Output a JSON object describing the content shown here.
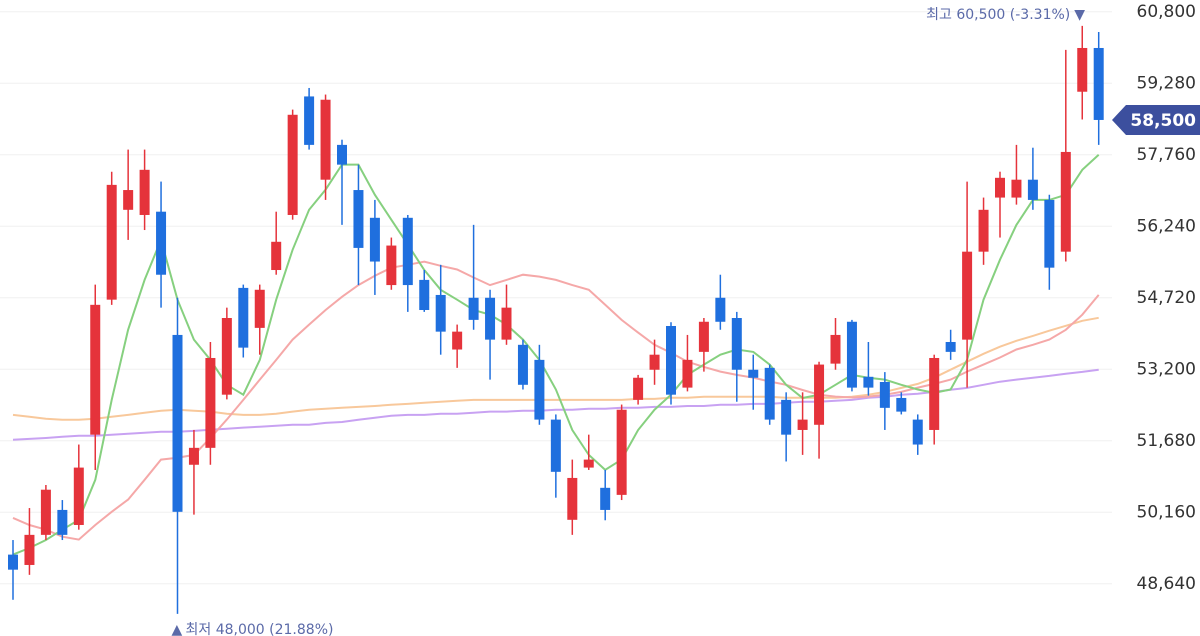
{
  "chart_data": {
    "type": "candlestick",
    "ylim": [
      47530,
      61050
    ],
    "yticks": [
      {
        "value": 48640,
        "label": "48,640"
      },
      {
        "value": 50160,
        "label": "50,160"
      },
      {
        "value": 51680,
        "label": "51,680"
      },
      {
        "value": 53200,
        "label": "53,200"
      },
      {
        "value": 54720,
        "label": "54,720"
      },
      {
        "value": 56240,
        "label": "56,240"
      },
      {
        "value": 57760,
        "label": "57,760"
      },
      {
        "value": 59280,
        "label": "59,280"
      },
      {
        "value": 60800,
        "label": "60,800"
      }
    ],
    "grid": true,
    "up_color": "#e5333b",
    "down_color": "#1f6fde",
    "candles": {
      "open": [
        49260,
        49040,
        49680,
        50210,
        49890,
        51810,
        54680,
        56590,
        56480,
        56550,
        53930,
        51170,
        51530,
        52660,
        54930,
        54080,
        55310,
        56480,
        59000,
        57230,
        57970,
        57010,
        56420,
        54990,
        56420,
        55100,
        54780,
        53620,
        54720,
        54720,
        53830,
        53720,
        53400,
        52130,
        50000,
        51110,
        50680,
        50530,
        52550,
        53190,
        54120,
        52810,
        53570,
        54720,
        54290,
        53190,
        53230,
        52550,
        51910,
        52020,
        53320,
        54210,
        53040,
        52930,
        52590,
        52130,
        51910,
        53780,
        53830,
        55700,
        56850,
        56850,
        57230,
        56800,
        55700,
        59100,
        60030
      ],
      "high": [
        49570,
        50250,
        50740,
        50420,
        51600,
        55000,
        57400,
        57870,
        57870,
        57190,
        54720,
        51910,
        53780,
        54510,
        55000,
        55000,
        56550,
        58720,
        59180,
        59040,
        58080,
        57550,
        56800,
        56000,
        56480,
        55310,
        55420,
        54150,
        56270,
        54890,
        55000,
        53830,
        53720,
        52240,
        51280,
        51810,
        51060,
        52450,
        53080,
        53830,
        54200,
        53930,
        54290,
        55210,
        54420,
        53510,
        53300,
        52710,
        52710,
        53360,
        54290,
        54250,
        53780,
        53140,
        52710,
        52240,
        53510,
        54040,
        57190,
        56850,
        57400,
        57970,
        57910,
        56910,
        59990,
        60500,
        60370
      ],
      "low": [
        48300,
        48830,
        49570,
        49570,
        49790,
        51060,
        54570,
        55950,
        56160,
        54510,
        48000,
        50110,
        51170,
        52560,
        53450,
        53510,
        55210,
        56380,
        57870,
        56800,
        56270,
        54990,
        54780,
        54890,
        54420,
        54420,
        53510,
        53230,
        54040,
        52980,
        53720,
        52770,
        52020,
        50470,
        49680,
        51060,
        49990,
        50420,
        52450,
        52870,
        52450,
        52730,
        53150,
        54040,
        52510,
        52340,
        52020,
        51240,
        51380,
        51300,
        53190,
        52730,
        52640,
        51910,
        52240,
        51380,
        51600,
        53400,
        52810,
        55420,
        56000,
        56700,
        56590,
        54890,
        55490,
        58510,
        57970
      ],
      "close": [
        48940,
        49680,
        50640,
        49680,
        51110,
        54570,
        57120,
        57010,
        57440,
        55210,
        50170,
        51530,
        53440,
        54290,
        53660,
        54890,
        55910,
        58610,
        57970,
        58930,
        57550,
        55780,
        55490,
        55830,
        54990,
        54460,
        54000,
        54000,
        54250,
        53830,
        54510,
        52870,
        52130,
        51020,
        50890,
        51280,
        50210,
        52340,
        53020,
        53510,
        52660,
        53400,
        54210,
        54210,
        53190,
        53020,
        52130,
        51810,
        52130,
        53300,
        53930,
        52810,
        52810,
        52380,
        52300,
        51600,
        53440,
        53570,
        55700,
        56590,
        57270,
        57230,
        56800,
        55360,
        57820,
        60030,
        58500
      ]
    },
    "lines": [
      {
        "color": "#c8a2f2",
        "values": [
          51700,
          51720,
          51740,
          51765,
          51785,
          51785,
          51810,
          51830,
          51850,
          51870,
          51870,
          51890,
          51915,
          51935,
          51960,
          51980,
          52000,
          52020,
          52020,
          52060,
          52080,
          52125,
          52170,
          52210,
          52230,
          52230,
          52255,
          52255,
          52275,
          52300,
          52300,
          52320,
          52320,
          52340,
          52340,
          52360,
          52360,
          52380,
          52380,
          52400,
          52400,
          52420,
          52420,
          52445,
          52445,
          52465,
          52465,
          52490,
          52510,
          52510,
          52530,
          52550,
          52595,
          52615,
          52660,
          52680,
          52720,
          52765,
          52805,
          52870,
          52935,
          52980,
          53020,
          53060,
          53105,
          53145,
          53190
        ]
      },
      {
        "color": "#f8c89b",
        "values": [
          52230,
          52190,
          52150,
          52125,
          52125,
          52150,
          52190,
          52230,
          52275,
          52320,
          52340,
          52320,
          52300,
          52255,
          52230,
          52230,
          52255,
          52300,
          52340,
          52360,
          52380,
          52400,
          52420,
          52445,
          52465,
          52490,
          52510,
          52530,
          52550,
          52550,
          52550,
          52550,
          52550,
          52550,
          52550,
          52550,
          52550,
          52550,
          52570,
          52570,
          52595,
          52595,
          52615,
          52615,
          52615,
          52615,
          52615,
          52595,
          52595,
          52595,
          52595,
          52615,
          52660,
          52720,
          52805,
          52890,
          53020,
          53190,
          53360,
          53530,
          53680,
          53805,
          53910,
          54020,
          54125,
          54230,
          54295
        ]
      },
      {
        "color": "#f5a8a8",
        "values": [
          50040,
          49890,
          49790,
          49640,
          49580,
          49890,
          50170,
          50430,
          50850,
          51280,
          51320,
          51380,
          51740,
          52130,
          52550,
          52980,
          53400,
          53830,
          54150,
          54460,
          54740,
          54990,
          55190,
          55360,
          55420,
          55490,
          55400,
          55320,
          55150,
          54990,
          55100,
          55210,
          55170,
          55100,
          54990,
          54890,
          54570,
          54250,
          53980,
          53720,
          53550,
          53360,
          53250,
          53150,
          53080,
          53020,
          52940,
          52870,
          52760,
          52660,
          52620,
          52600,
          52620,
          52660,
          52720,
          52810,
          52890,
          52980,
          53150,
          53300,
          53450,
          53620,
          53720,
          53830,
          54040,
          54360,
          54780
        ]
      },
      {
        "color": "#86d07f",
        "values": [
          49260,
          49400,
          49570,
          49790,
          50000,
          50850,
          52550,
          54040,
          55100,
          55950,
          54680,
          53830,
          53400,
          52870,
          52660,
          53400,
          54680,
          55740,
          56590,
          57020,
          57550,
          57550,
          56910,
          56380,
          55850,
          55310,
          54890,
          54680,
          54460,
          54360,
          54150,
          53830,
          53400,
          52770,
          51910,
          51380,
          51060,
          51280,
          51910,
          52340,
          52660,
          53080,
          53300,
          53510,
          53620,
          53570,
          53300,
          52870,
          52590,
          52660,
          52870,
          53080,
          53020,
          52980,
          52870,
          52770,
          52700,
          52770,
          53400,
          54680,
          55530,
          56270,
          56800,
          56800,
          56910,
          57440,
          57760
        ]
      }
    ],
    "last_price": {
      "value": 58500,
      "label": "58,500"
    },
    "high_annotation": "최고 60,500 (-3.31%)",
    "low_annotation": "최저 48,000 (21.88%)"
  }
}
